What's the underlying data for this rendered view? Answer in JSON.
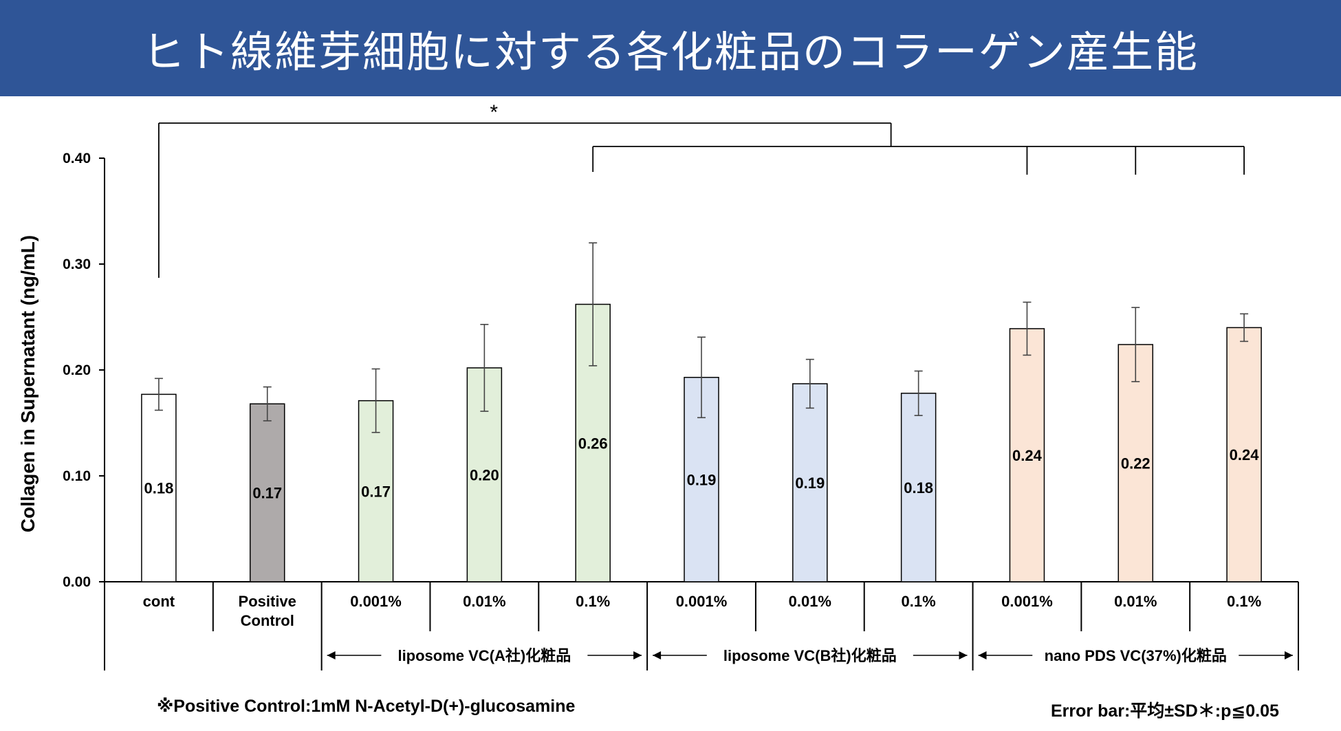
{
  "title": "ヒト線維芽細胞に対する各化粧品のコラーゲン産生能",
  "chart_data": {
    "type": "bar",
    "ylabel": "Collagen in Supernatant (ng/mL)",
    "ylim": [
      0,
      0.4
    ],
    "yticks": [
      "0.00",
      "0.10",
      "0.20",
      "0.30",
      "0.40"
    ],
    "grid": false,
    "bars": [
      {
        "label": "cont",
        "value": 0.177,
        "value_label": "0.18",
        "error": 0.015,
        "fill": "#ffffff"
      },
      {
        "label": "Positive Control",
        "value": 0.168,
        "value_label": "0.17",
        "error": 0.016,
        "fill": "#aeaaaa"
      },
      {
        "label": "0.001%",
        "value": 0.171,
        "value_label": "0.17",
        "error": 0.03,
        "fill": "#e2efda"
      },
      {
        "label": "0.01%",
        "value": 0.202,
        "value_label": "0.20",
        "error": 0.041,
        "fill": "#e2efda"
      },
      {
        "label": "0.1%",
        "value": 0.262,
        "value_label": "0.26",
        "error": 0.058,
        "fill": "#e2efda"
      },
      {
        "label": "0.001%",
        "value": 0.193,
        "value_label": "0.19",
        "error": 0.038,
        "fill": "#dae3f3"
      },
      {
        "label": "0.01%",
        "value": 0.187,
        "value_label": "0.19",
        "error": 0.023,
        "fill": "#dae3f3"
      },
      {
        "label": "0.1%",
        "value": 0.178,
        "value_label": "0.18",
        "error": 0.021,
        "fill": "#dae3f3"
      },
      {
        "label": "0.001%",
        "value": 0.239,
        "value_label": "0.24",
        "error": 0.025,
        "fill": "#fbe5d6"
      },
      {
        "label": "0.01%",
        "value": 0.224,
        "value_label": "0.22",
        "error": 0.035,
        "fill": "#fbe5d6"
      },
      {
        "label": "0.1%",
        "value": 0.24,
        "value_label": "0.24",
        "error": 0.013,
        "fill": "#fbe5d6"
      }
    ],
    "groups": [
      {
        "label": "liposome VC(A社)化粧品",
        "from": 2,
        "to": 4
      },
      {
        "label": "liposome VC(B社)化粧品",
        "from": 5,
        "to": 7
      },
      {
        "label": "nano PDS VC(37%)化粧品",
        "from": 8,
        "to": 10
      }
    ],
    "significance": {
      "marker": "*",
      "from": 0,
      "to": [
        4,
        8,
        9,
        10
      ]
    }
  },
  "footnotes": {
    "left": "※Positive Control:1mM N-Acetyl-D(+)-glucosamine",
    "right": "Error bar:平均±SD＊:p≦0.05"
  }
}
